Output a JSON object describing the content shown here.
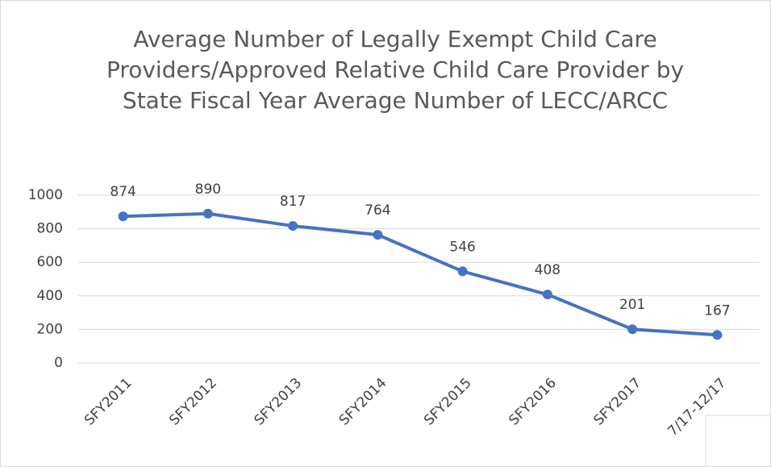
{
  "chart_data": {
    "type": "line",
    "title": "Average Number of Legally Exempt Child Care Providers/Approved Relative Child Care Provider by State Fiscal Year Average Number of LECC/ARCC",
    "categories": [
      "SFY2011",
      "SFY2012",
      "SFY2013",
      "SFY2014",
      "SFY2015",
      "SFY2016",
      "SFY2017",
      "7/17-12/17"
    ],
    "series": [
      {
        "name": "Average Number of LECC/ARCC",
        "color": "#4472c4",
        "values": [
          874,
          890,
          817,
          764,
          546,
          408,
          201,
          167
        ]
      }
    ],
    "ylim": [
      0,
      1000
    ],
    "yticks": [
      0,
      200,
      400,
      600,
      800,
      1000
    ],
    "grid": true
  }
}
